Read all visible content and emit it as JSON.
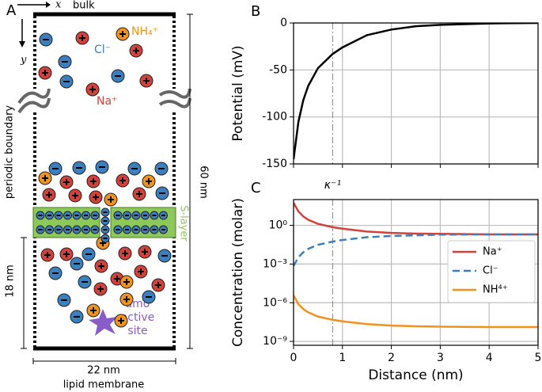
{
  "panel_a": {
    "label": "A",
    "x_axis": "x",
    "bulk": "bulk",
    "y_axis": "y",
    "nh4": "NH₄⁺",
    "cl": "Cl⁻",
    "na": "Na⁺",
    "periodic_boundary": "periodic boundary",
    "height": "60 nm",
    "s_layer": "S-layer",
    "lower_height": "18 nm",
    "amo_site": [
      "amo",
      "active",
      "site"
    ],
    "width": "22 nm",
    "membrane": "lipid membrane"
  },
  "chart_data": [
    {
      "type": "line",
      "panel_label": "B",
      "ylabel": "Potential (mV)",
      "x": [
        0,
        0.1,
        0.2,
        0.3,
        0.5,
        0.8,
        1.0,
        1.5,
        2.0,
        2.5,
        3.0,
        4.0,
        5.0
      ],
      "values": [
        -145,
        -105,
        -82,
        -67,
        -48,
        -33,
        -26,
        -13,
        -7,
        -3.5,
        -2,
        -0.5,
        0
      ],
      "color": "#000000",
      "xlim": [
        0,
        5
      ],
      "ylim": [
        -150,
        0
      ],
      "yticks": [
        -150,
        -100,
        -50,
        0
      ],
      "grid": true
    },
    {
      "type": "line",
      "panel_label": "C",
      "xlabel": "Distance (nm)",
      "ylabel": "Concentration (molar)",
      "x": [
        0,
        0.1,
        0.2,
        0.3,
        0.5,
        0.8,
        1.0,
        1.5,
        2.0,
        2.5,
        3.0,
        4.0,
        5.0
      ],
      "series": [
        {
          "name": "Na⁺",
          "color": "#d2413a",
          "linestyle": "solid",
          "values": [
            56,
            12,
            4.9,
            2.7,
            1.3,
            0.72,
            0.55,
            0.33,
            0.26,
            0.23,
            0.22,
            0.2,
            0.2
          ]
        },
        {
          "name": "Cl⁻",
          "color": "#3b7fbf",
          "linestyle": "dashed",
          "values": [
            0.0007,
            0.0034,
            0.0082,
            0.015,
            0.031,
            0.055,
            0.073,
            0.12,
            0.15,
            0.17,
            0.19,
            0.2,
            0.2
          ]
        },
        {
          "name": "NH⁴⁺",
          "color": "#f0931e",
          "linestyle": "solid",
          "values": [
            3.7e-06,
            7.7e-07,
            3.2e-07,
            1.8e-07,
            8.4e-08,
            4.7e-08,
            3.6e-08,
            2.2e-08,
            1.7e-08,
            1.5e-08,
            1.4e-08,
            1.3e-08,
            1.3e-08
          ]
        }
      ],
      "log_y": true,
      "xlim": [
        0,
        5
      ],
      "ylim": [
        5e-10,
        100
      ],
      "xticks": [
        0,
        1,
        2,
        3,
        4,
        5
      ],
      "yticks": [
        {
          "value": 1,
          "label": "10⁰"
        },
        {
          "value": 0.001,
          "label": "10⁻³"
        },
        {
          "value": 1e-06,
          "label": "10⁻⁶"
        },
        {
          "value": 1e-09,
          "label": "10⁻⁹"
        }
      ],
      "grid": true,
      "legend": "right",
      "annotation": {
        "text": "κ⁻¹",
        "x": 0.8
      }
    }
  ]
}
